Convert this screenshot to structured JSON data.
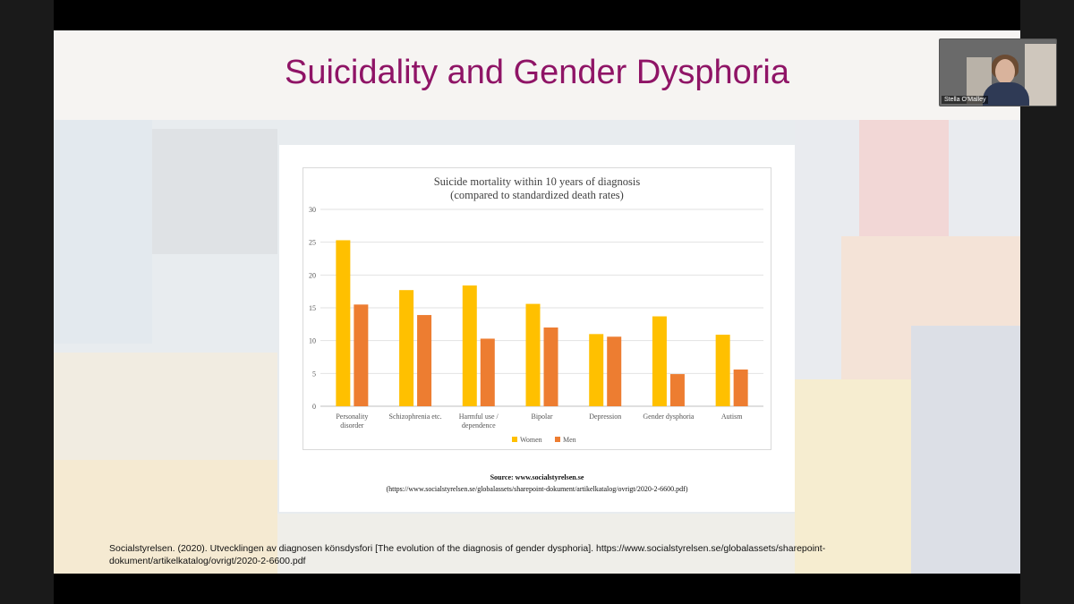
{
  "slide": {
    "title": "Suicidality and Gender Dysphoria",
    "source_line1": "Source: www.socialstyrelsen.se",
    "source_line2": "(https://www.socialstyrelsen.se/globalassets/sharepoint-dokument/artikelkatalog/ovrigt/2020-2-6600.pdf)",
    "citation": "Socialstyrelsen. (2020). Utvecklingen av diagnosen könsdysfori [The evolution of the diagnosis of gender dysphoria]. https://www.socialstyrelsen.se/globalassets/sharepoint-dokument/artikelkatalog/ovrigt/2020-2-6600.pdf"
  },
  "webcam": {
    "name": "Stella O'Malley"
  },
  "colors": {
    "title": "#8f1466",
    "women": "#ffc000",
    "men": "#ed7d31"
  },
  "chart_data": {
    "type": "bar",
    "title": "Suicide mortality within 10 years of diagnosis",
    "subtitle": "(compared to standardized death rates)",
    "categories": [
      [
        "Personality",
        "disorder"
      ],
      [
        "Schizophrenia etc."
      ],
      [
        "Harmful use /",
        "dependence"
      ],
      [
        "Bipolar"
      ],
      [
        "Depression"
      ],
      [
        "Gender dysphoria"
      ],
      [
        "Autism"
      ]
    ],
    "series": [
      {
        "name": "Women",
        "values": [
          25.3,
          17.7,
          18.4,
          15.6,
          11.0,
          13.7,
          10.9
        ]
      },
      {
        "name": "Men",
        "values": [
          15.5,
          13.9,
          10.3,
          12.0,
          10.6,
          4.9,
          5.6
        ]
      }
    ],
    "yticks": [
      0,
      5,
      10,
      15,
      20,
      25,
      30
    ],
    "ylim": [
      0,
      30
    ],
    "grid": true,
    "legend": "bottom"
  }
}
